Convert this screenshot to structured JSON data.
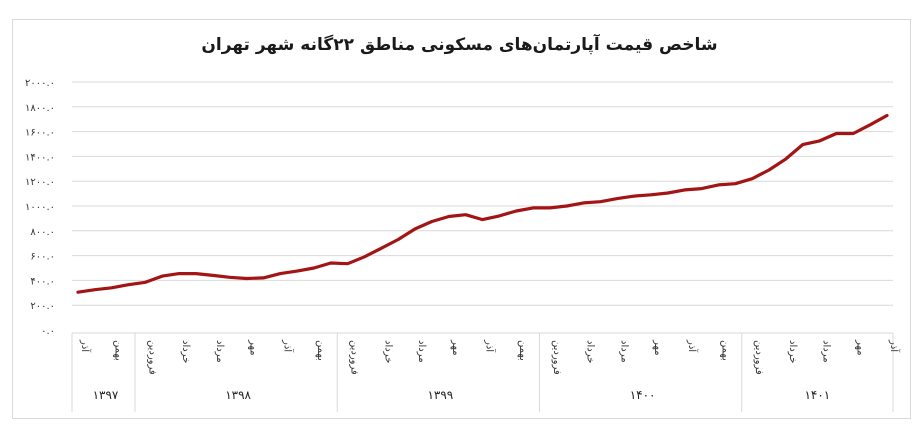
{
  "chart_data": {
    "type": "line",
    "title": "شاخص قیمت آپارتمان‌های مسکونی مناطق ۲۲گانه شهر تهران",
    "xlabel": "",
    "ylabel": "",
    "ylim": [
      0,
      2000
    ],
    "grid": true,
    "legend": "none",
    "line_color": "#a31515",
    "y_ticks": [
      "۰.۰",
      "۲۰۰.۰",
      "۴۰۰.۰",
      "۶۰۰.۰",
      "۸۰۰.۰",
      "۱۰۰۰.۰",
      "۱۲۰۰.۰",
      "۱۴۰۰.۰",
      "۱۶۰۰.۰",
      "۱۸۰۰.۰",
      "۲۰۰۰.۰"
    ],
    "y_tick_values": [
      0,
      200,
      400,
      600,
      800,
      1000,
      1200,
      1400,
      1600,
      1800,
      2000
    ],
    "x_month_labels": [
      {
        "index": 0,
        "label": "آذر"
      },
      {
        "index": 2,
        "label": "بهمن"
      },
      {
        "index": 4,
        "label": "فروردین"
      },
      {
        "index": 6,
        "label": "خرداد"
      },
      {
        "index": 8,
        "label": "مرداد"
      },
      {
        "index": 10,
        "label": "مهر"
      },
      {
        "index": 12,
        "label": "آذر"
      },
      {
        "index": 14,
        "label": "بهمن"
      },
      {
        "index": 16,
        "label": "فروردین"
      },
      {
        "index": 18,
        "label": "خرداد"
      },
      {
        "index": 20,
        "label": "مرداد"
      },
      {
        "index": 22,
        "label": "مهر"
      },
      {
        "index": 24,
        "label": "آذر"
      },
      {
        "index": 26,
        "label": "بهمن"
      },
      {
        "index": 28,
        "label": "فروردین"
      },
      {
        "index": 30,
        "label": "خرداد"
      },
      {
        "index": 32,
        "label": "مرداد"
      },
      {
        "index": 34,
        "label": "مهر"
      },
      {
        "index": 36,
        "label": "آذر"
      },
      {
        "index": 38,
        "label": "بهمن"
      },
      {
        "index": 40,
        "label": "فروردین"
      },
      {
        "index": 42,
        "label": "خرداد"
      },
      {
        "index": 44,
        "label": "مرداد"
      },
      {
        "index": 46,
        "label": "مهر"
      },
      {
        "index": 48,
        "label": "آذر"
      }
    ],
    "x_year_groups": [
      {
        "label": "۱۳۹۷",
        "start": 0,
        "end": 3
      },
      {
        "label": "۱۳۹۸",
        "start": 4,
        "end": 15
      },
      {
        "label": "۱۳۹۹",
        "start": 16,
        "end": 27
      },
      {
        "label": "۱۴۰۰",
        "start": 28,
        "end": 39
      },
      {
        "label": "۱۴۰۱",
        "start": 40,
        "end": 48
      }
    ],
    "series": [
      {
        "name": "شاخص قیمت",
        "values": [
          305,
          325,
          340,
          365,
          385,
          435,
          455,
          455,
          440,
          425,
          415,
          420,
          455,
          475,
          500,
          540,
          535,
          590,
          660,
          730,
          815,
          875,
          915,
          930,
          890,
          920,
          960,
          985,
          985,
          1000,
          1025,
          1035,
          1060,
          1080,
          1090,
          1105,
          1130,
          1140,
          1170,
          1180,
          1220,
          1290,
          1380,
          1495,
          1525,
          1585,
          1585,
          1655,
          1730
        ]
      }
    ]
  }
}
